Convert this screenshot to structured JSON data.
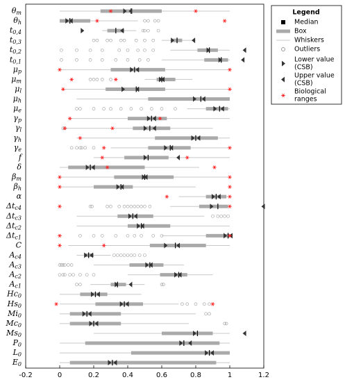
{
  "chart_data": {
    "type": "boxplot",
    "xlim": [
      -0.2,
      1.2
    ],
    "xticks": [
      -0.2,
      0,
      0.2,
      0.4,
      0.6,
      0.8,
      1,
      1.2
    ],
    "colors": {
      "median": "#000000",
      "box": "#aaaaaa",
      "whisker": "#c8c8c8",
      "outlier": "#999999",
      "csb": "#333333",
      "bio": "#ff2020"
    },
    "legend": {
      "title": "Legend",
      "entries": [
        [
          "Median"
        ],
        [
          "Box"
        ],
        [
          "Whiskers"
        ],
        [
          "Outliers"
        ],
        [
          "Lower value",
          "(CSB)"
        ],
        [
          "Upper value",
          "(CSB)"
        ],
        [
          "Biological",
          "ranges"
        ]
      ]
    },
    "rows": [
      {
        "sym": "θ",
        "sub": "m",
        "median": 0.42,
        "box": [
          0.24,
          0.6
        ],
        "whiskers": [
          0,
          1
        ],
        "csb_lower": 0.39,
        "csb_upper": 0.41,
        "bio": [
          0.3,
          0.8
        ],
        "outliers": []
      },
      {
        "sym": "θ",
        "sub": "h",
        "median": 0.06,
        "box": [
          0,
          0.18
        ],
        "whiskers": [
          0,
          0.46
        ],
        "csb_lower": 0.05,
        "csb_upper": 0.06,
        "bio": [
          0.22,
          0.97
        ],
        "outliers": [
          0.5,
          0.52,
          0.56,
          0.58
        ]
      },
      {
        "sym": "t",
        "sub": "0,4",
        "median": 0.33,
        "box": [
          0.28,
          0.38
        ],
        "whiskers": [
          0.25,
          0.45
        ],
        "csb_lower": 0.14,
        "csb_upper": 0.36,
        "bio": [],
        "outliers": [
          0.49,
          0.5,
          0.52,
          0.58
        ]
      },
      {
        "sym": "t",
        "sub": "0,3",
        "median": 0.69,
        "box": [
          0.66,
          0.72
        ],
        "whiskers": [
          0.6,
          0.8
        ],
        "csb_lower": 0.67,
        "csb_upper": 0.78,
        "bio": [],
        "outliers": [
          0.2,
          0.22,
          0.28,
          0.3,
          0.36,
          0.38,
          0.45,
          0.5,
          0.55
        ]
      },
      {
        "sym": "t",
        "sub": "0,2",
        "median": 0.88,
        "box": [
          0.81,
          0.93
        ],
        "whiskers": [
          0.65,
          1
        ],
        "csb_lower": 0.88,
        "csb_upper": 1.08,
        "bio": [],
        "outliers": [
          0.01,
          0.1,
          0.18,
          0.25,
          0.35,
          0.4,
          0.46,
          0.5,
          0.55
        ]
      },
      {
        "sym": "t",
        "sub": "0,1",
        "median": 0.95,
        "box": [
          0.85,
          0.99
        ],
        "whiskers": [
          0.6,
          1
        ],
        "csb_lower": 0.95,
        "csb_upper": 1.07,
        "bio": [],
        "outliers": [
          0.01,
          0.1,
          0.18,
          0.25,
          0.33,
          0.4,
          0.47,
          0.52
        ]
      },
      {
        "sym": "μ",
        "sub": "p",
        "median": 0.44,
        "box": [
          0.3,
          0.62
        ],
        "whiskers": [
          0,
          1
        ],
        "csb_lower": 0.43,
        "csb_upper": 0.45,
        "bio": [
          0,
          1
        ],
        "outliers": []
      },
      {
        "sym": "μ",
        "sub": "m",
        "median": 0.6,
        "box": [
          0.57,
          0.68
        ],
        "whiskers": [
          0.5,
          0.78
        ],
        "csb_lower": 0.6,
        "csb_upper": 0.6,
        "bio": [
          0.07,
          0.33
        ],
        "outliers": [
          0.18,
          0.2,
          0.22,
          0.25,
          0.3
        ]
      },
      {
        "sym": "μ",
        "sub": "l",
        "median": 0.45,
        "box": [
          0.27,
          0.62
        ],
        "whiskers": [
          0.02,
          1
        ],
        "csb_lower": 0.38,
        "csb_upper": 0.45,
        "bio": [
          0.02,
          1
        ],
        "outliers": []
      },
      {
        "sym": "μ",
        "sub": "h",
        "median": 0.83,
        "box": [
          0.52,
          1
        ],
        "whiskers": [
          0.1,
          1
        ],
        "csb_lower": 0.8,
        "csb_upper": 0.84,
        "bio": [],
        "outliers": []
      },
      {
        "sym": "μ",
        "sub": "e",
        "median": 0.94,
        "box": [
          0.86,
          0.99
        ],
        "whiskers": [
          0.75,
          1
        ],
        "csb_lower": 0.92,
        "csb_upper": 0.95,
        "bio": [],
        "outliers": [
          0.1,
          0.12,
          0.2,
          0.26,
          0.3,
          0.36,
          0.42,
          0.48,
          0.54,
          0.6,
          0.68
        ]
      },
      {
        "sym": "γ",
        "sub": "p",
        "median": 0.54,
        "box": [
          0.4,
          0.63
        ],
        "whiskers": [
          0.05,
          1
        ],
        "csb_lower": 0.53,
        "csb_upper": 0.55,
        "bio": [
          0.06,
          0.59
        ],
        "outliers": []
      },
      {
        "sym": "γ",
        "sub": "l",
        "median": 0.53,
        "box": [
          0.43,
          0.65
        ],
        "whiskers": [
          0.02,
          0.9
        ],
        "csb_lower": 0.51,
        "csb_upper": 0.55,
        "bio": [
          0.03,
          0.31
        ],
        "outliers": [
          0.02,
          0.03
        ]
      },
      {
        "sym": "γ",
        "sub": "h",
        "median": 0.8,
        "box": [
          0.56,
          0.93
        ],
        "whiskers": [
          0.1,
          1
        ],
        "csb_lower": 0.79,
        "csb_upper": 0.81,
        "bio": [
          0.12
        ],
        "outliers": []
      },
      {
        "sym": "γ",
        "sub": "e",
        "median": 0.65,
        "box": [
          0.52,
          0.77
        ],
        "whiskers": [
          0.3,
          1
        ],
        "csb_lower": 0.63,
        "csb_upper": 0.65,
        "bio": [
          0.26,
          1
        ],
        "outliers": [
          0.07,
          0.1,
          0.12,
          0.13,
          0.15,
          0.2
        ]
      },
      {
        "sym": "f",
        "sub": "",
        "median": 0.52,
        "box": [
          0.38,
          0.64
        ],
        "whiskers": [
          0.2,
          1
        ],
        "csb_lower": 0.51,
        "csb_upper": 0.69,
        "bio": [
          0.25,
          0.75
        ],
        "outliers": []
      },
      {
        "sym": "δ",
        "sub": "",
        "median": 0.18,
        "box": [
          0.05,
          0.5
        ],
        "whiskers": [
          0,
          0.82
        ],
        "csb_lower": 0.17,
        "csb_upper": 0.19,
        "bio": [
          0.28,
          0.91
        ],
        "outliers": []
      },
      {
        "sym": "β",
        "sub": "m",
        "median": 0.5,
        "box": [
          0.32,
          0.67
        ],
        "whiskers": [
          0,
          1
        ],
        "csb_lower": 0.5,
        "csb_upper": 0.5,
        "bio": [
          0,
          1
        ],
        "outliers": []
      },
      {
        "sym": "β",
        "sub": "h",
        "median": 0.36,
        "box": [
          0.2,
          0.43
        ],
        "whiskers": [
          0,
          0.8
        ],
        "csb_lower": 0.35,
        "csb_upper": 0.36,
        "bio": [
          0,
          1
        ],
        "outliers": []
      },
      {
        "sym": "α",
        "sub": "",
        "median": 0.92,
        "box": [
          0.86,
          0.98
        ],
        "whiskers": [
          0.7,
          1
        ],
        "csb_lower": 0.91,
        "csb_upper": 0.93,
        "bio": [
          0.63,
          1
        ],
        "outliers": []
      },
      {
        "sym": "Δt",
        "sub": "c4",
        "median": 0.93,
        "box": [
          0.82,
          0.99
        ],
        "whiskers": [
          0.65,
          1
        ],
        "csb_lower": 0.9,
        "csb_upper": 1.19,
        "bio": [
          0,
          1
        ],
        "outliers": [
          0.18,
          0.19,
          0.28,
          0.3,
          0.35,
          0.38,
          0.4,
          0.42,
          0.44,
          0.46,
          0.48,
          0.5,
          0.53
        ]
      },
      {
        "sym": "Δt",
        "sub": "c3",
        "median": 0.43,
        "box": [
          0.34,
          0.55
        ],
        "whiskers": [
          0.1,
          0.85
        ],
        "csb_lower": 0.42,
        "csb_upper": 0.44,
        "bio": [],
        "outliers": [
          0.9,
          0.93,
          0.95,
          0.97,
          0.99
        ]
      },
      {
        "sym": "Δt",
        "sub": "c2",
        "median": 0.48,
        "box": [
          0.4,
          0.65
        ],
        "whiskers": [
          0.1,
          1
        ],
        "csb_lower": 0.47,
        "csb_upper": 0.48,
        "bio": [],
        "outliers": []
      },
      {
        "sym": "Δt",
        "sub": "c1",
        "median": 0.99,
        "box": [
          0.86,
          1
        ],
        "whiskers": [
          0.6,
          1
        ],
        "csb_lower": 0.98,
        "csb_upper": 1,
        "bio": [
          0,
          1
        ],
        "outliers": [
          0.12,
          0.2,
          0.25,
          0.33,
          0.4,
          0.44,
          0.48,
          0.55,
          0.6
        ]
      },
      {
        "sym": "C",
        "sub": "",
        "median": 0.68,
        "box": [
          0.53,
          0.86
        ],
        "whiskers": [
          0.05,
          1
        ],
        "csb_lower": 0.63,
        "csb_upper": 0.69,
        "bio": [
          0,
          0.26
        ],
        "outliers": []
      },
      {
        "sym": "A",
        "sub": "c4",
        "median": 0.17,
        "box": [
          0.15,
          0.2
        ],
        "whiskers": [
          0.1,
          0.3
        ],
        "csb_lower": 0.16,
        "csb_upper": 0.18,
        "bio": [],
        "outliers": [
          0.32,
          0.34,
          0.36,
          0.38,
          0.4,
          0.42,
          0.44,
          0.47,
          0.5
        ]
      },
      {
        "sym": "A",
        "sub": "c3",
        "median": 0.53,
        "box": [
          0.41,
          0.61
        ],
        "whiskers": [
          0.2,
          0.73
        ],
        "csb_lower": 0.52,
        "csb_upper": 0.53,
        "bio": [],
        "outliers": [
          0,
          0.01,
          0.02,
          0.03,
          0.05,
          0.07
        ]
      },
      {
        "sym": "A",
        "sub": "c2",
        "median": 0.7,
        "box": [
          0.59,
          0.75
        ],
        "whiskers": [
          0.4,
          0.9
        ],
        "csb_lower": 0.69,
        "csb_upper": 0.7,
        "bio": [],
        "outliers": [
          0,
          0.02,
          0.03,
          0.06,
          0.08,
          0.12,
          0.16,
          0.2
        ]
      },
      {
        "sym": "A",
        "sub": "c1",
        "median": 0.34,
        "box": [
          0.3,
          0.39
        ],
        "whiskers": [
          0.18,
          0.5
        ],
        "csb_lower": 0.34,
        "csb_upper": 0.41,
        "bio": [],
        "outliers": [
          0.1,
          0.12,
          0.6,
          0.61
        ]
      },
      {
        "sym": "Hc",
        "sub": "0",
        "median": 0.21,
        "box": [
          0.12,
          0.28
        ],
        "whiskers": [
          0,
          0.48
        ],
        "csb_lower": 0.2,
        "csb_upper": 0.22,
        "bio": [],
        "outliers": []
      },
      {
        "sym": "Hs",
        "sub": "0",
        "median": 0.38,
        "box": [
          0.21,
          0.49
        ],
        "whiskers": [
          0,
          0.7
        ],
        "csb_lower": 0.37,
        "csb_upper": 0.39,
        "bio": [
          -0.02,
          0.9
        ],
        "outliers": [
          0.72,
          0.75,
          0.8,
          0.85,
          0.88
        ]
      },
      {
        "sym": "Mi",
        "sub": "0",
        "median": 0.16,
        "box": [
          0.06,
          0.36
        ],
        "whiskers": [
          0,
          0.8
        ],
        "csb_lower": 0.15,
        "csb_upper": 0.17,
        "bio": [],
        "outliers": [
          0.86,
          0.88
        ]
      },
      {
        "sym": "Mc",
        "sub": "0",
        "median": 0.2,
        "box": [
          0.06,
          0.36
        ],
        "whiskers": [
          0,
          0.76
        ],
        "csb_lower": 0.19,
        "csb_upper": 0.21,
        "bio": [],
        "outliers": [
          0.97,
          0.98
        ]
      },
      {
        "sym": "Ms",
        "sub": "0",
        "median": 0.81,
        "box": [
          0.6,
          0.9
        ],
        "whiskers": [
          0.2,
          1
        ],
        "csb_lower": 0.8,
        "csb_upper": 1.08,
        "bio": [],
        "outliers": []
      },
      {
        "sym": "P",
        "sub": "0",
        "median": 0.73,
        "box": [
          0.15,
          0.94
        ],
        "whiskers": [
          0,
          1
        ],
        "csb_lower": 0.72,
        "csb_upper": 0.76,
        "bio": [],
        "outliers": []
      },
      {
        "sym": "L",
        "sub": "0",
        "median": 0.88,
        "box": [
          0.42,
          1
        ],
        "whiskers": [
          0,
          1
        ],
        "csb_lower": 0.87,
        "csb_upper": 0.89,
        "bio": [],
        "outliers": []
      },
      {
        "sym": "E",
        "sub": "0",
        "median": 0.31,
        "box": [
          0.06,
          0.92
        ],
        "whiskers": [
          0,
          1
        ],
        "csb_lower": 0.3,
        "csb_upper": 0.32,
        "bio": [],
        "outliers": []
      }
    ]
  }
}
